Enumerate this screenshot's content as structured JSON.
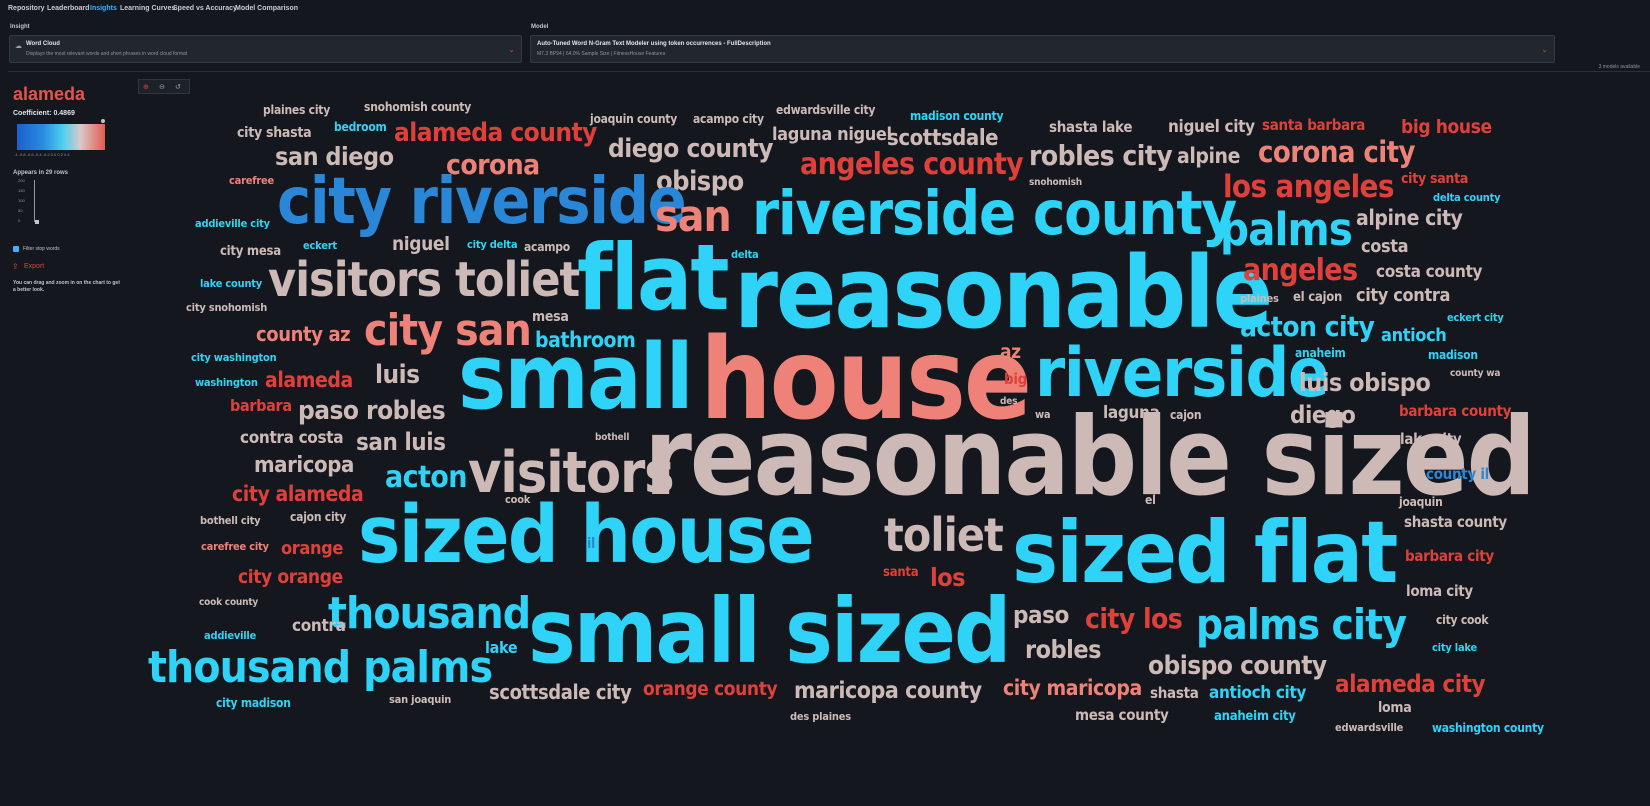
{
  "nav": {
    "tabs": [
      "Repository",
      "Leaderboard",
      "Insights",
      "Learning Curves",
      "Speed vs Accuracy",
      "Model Comparison"
    ],
    "active": "Insights"
  },
  "insight_select": {
    "label": "Insight",
    "title": "Word Cloud",
    "subtitle": "Displays the most relevant words and short phrases in word cloud format"
  },
  "model_select": {
    "label": "Model",
    "title": "Auto-Tuned Word N-Gram Text Modeler using token occurrences - FullDescription",
    "subtitle": "M7.3 BP94 | 64.0% Sample Size | FitnessHouse Features",
    "models_available": "3 models available"
  },
  "sidebar": {
    "selected_word": "alameda",
    "coefficient": "Coefficient: 0.4869",
    "colorbar_ticks": "-1 -0.8 -0.6 -0.4 -0.2 0.0 0.2 0.4",
    "appears": "Appears in 29 rows",
    "hist_ticks": [
      "200",
      "150",
      "100",
      "50",
      "0"
    ],
    "filter_label": "Filter stop words",
    "filter_checked": true,
    "export_label": "Export",
    "help_text": "You can drag and zoom in on the chart to get a better look.",
    "colors": {
      "negative": "#1b5fcf",
      "neutral": "#d9c9c9",
      "positive": "#e35a50"
    }
  },
  "zoom_controls": [
    "zoom-in-icon",
    "zoom-out-icon",
    "reset-icon"
  ],
  "cloud_words": [
    {
      "text": "plaines city",
      "color": "pink"
    },
    {
      "text": "snohomish county",
      "color": "pink"
    },
    {
      "text": "joaquin county",
      "color": "pink"
    },
    {
      "text": "acampo city",
      "color": "pink"
    },
    {
      "text": "edwardsville city",
      "color": "pink"
    },
    {
      "text": "madison county",
      "color": "blue"
    },
    {
      "text": "city shasta",
      "color": "pink"
    },
    {
      "text": "bedroom",
      "color": "blue"
    },
    {
      "text": "alameda county",
      "color": "red"
    },
    {
      "text": "laguna niguel",
      "color": "pink"
    },
    {
      "text": "scottsdale",
      "color": "pink"
    },
    {
      "text": "shasta lake",
      "color": "pink"
    },
    {
      "text": "niguel city",
      "color": "pink"
    },
    {
      "text": "santa barbara",
      "color": "red"
    },
    {
      "text": "big house",
      "color": "red"
    },
    {
      "text": "san diego",
      "color": "pink"
    },
    {
      "text": "corona",
      "color": "salmon"
    },
    {
      "text": "diego county",
      "color": "pink"
    },
    {
      "text": "angeles county",
      "color": "red"
    },
    {
      "text": "robles city",
      "color": "pink"
    },
    {
      "text": "alpine",
      "color": "pink"
    },
    {
      "text": "corona city",
      "color": "salmon"
    },
    {
      "text": "carefree",
      "color": "salmon"
    },
    {
      "text": "obispo",
      "color": "pink"
    },
    {
      "text": "snohomish",
      "color": "pink"
    },
    {
      "text": "los angeles",
      "color": "red"
    },
    {
      "text": "city santa",
      "color": "red"
    },
    {
      "text": "delta county",
      "color": "blue"
    },
    {
      "text": "city riverside",
      "color": "dblue"
    },
    {
      "text": "san",
      "color": "salmon"
    },
    {
      "text": "riverside county",
      "color": "blue"
    },
    {
      "text": "palms",
      "color": "blue"
    },
    {
      "text": "alpine city",
      "color": "pink"
    },
    {
      "text": "addieville city",
      "color": "blue"
    },
    {
      "text": "city mesa",
      "color": "pink"
    },
    {
      "text": "eckert",
      "color": "blue"
    },
    {
      "text": "niguel",
      "color": "pink"
    },
    {
      "text": "city delta",
      "color": "blue"
    },
    {
      "text": "acampo",
      "color": "pink"
    },
    {
      "text": "delta",
      "color": "blue"
    },
    {
      "text": "costa",
      "color": "pink"
    },
    {
      "text": "visitors toliet",
      "color": "pink"
    },
    {
      "text": "flat",
      "color": "blue"
    },
    {
      "text": "reasonable",
      "color": "blue"
    },
    {
      "text": "angeles",
      "color": "red"
    },
    {
      "text": "costa county",
      "color": "pink"
    },
    {
      "text": "lake county",
      "color": "blue"
    },
    {
      "text": "plaines",
      "color": "pink"
    },
    {
      "text": "el cajon",
      "color": "pink"
    },
    {
      "text": "city contra",
      "color": "pink"
    },
    {
      "text": "city snohomish",
      "color": "pink"
    },
    {
      "text": "mesa",
      "color": "pink"
    },
    {
      "text": "eckert city",
      "color": "blue"
    },
    {
      "text": "county az",
      "color": "salmon"
    },
    {
      "text": "city san",
      "color": "salmon"
    },
    {
      "text": "acton city",
      "color": "blue"
    },
    {
      "text": "bathroom",
      "color": "blue"
    },
    {
      "text": "antioch",
      "color": "blue"
    },
    {
      "text": "city washington",
      "color": "blue"
    },
    {
      "text": "az",
      "color": "salmon"
    },
    {
      "text": "anaheim",
      "color": "blue"
    },
    {
      "text": "madison",
      "color": "blue"
    },
    {
      "text": "alameda",
      "color": "red"
    },
    {
      "text": "luis",
      "color": "pink"
    },
    {
      "text": "small",
      "color": "blue"
    },
    {
      "text": "house",
      "color": "salmon"
    },
    {
      "text": "riverside",
      "color": "blue"
    },
    {
      "text": "county wa",
      "color": "pink"
    },
    {
      "text": "washington",
      "color": "blue"
    },
    {
      "text": "big",
      "color": "red"
    },
    {
      "text": "luis obispo",
      "color": "pink"
    },
    {
      "text": "barbara",
      "color": "red"
    },
    {
      "text": "paso robles",
      "color": "pink"
    },
    {
      "text": "des",
      "color": "pink"
    },
    {
      "text": "wa",
      "color": "pink"
    },
    {
      "text": "laguna",
      "color": "pink"
    },
    {
      "text": "cajon",
      "color": "pink"
    },
    {
      "text": "diego",
      "color": "pink"
    },
    {
      "text": "barbara county",
      "color": "red"
    },
    {
      "text": "contra costa",
      "color": "pink"
    },
    {
      "text": "san luis",
      "color": "pink"
    },
    {
      "text": "bothell",
      "color": "pink"
    },
    {
      "text": "lake city",
      "color": "pink"
    },
    {
      "text": "maricopa",
      "color": "pink"
    },
    {
      "text": "visitors",
      "color": "pink"
    },
    {
      "text": "reasonable sized",
      "color": "pink"
    },
    {
      "text": "acton",
      "color": "blue"
    },
    {
      "text": "county il",
      "color": "dblue"
    },
    {
      "text": "city alameda",
      "color": "red"
    },
    {
      "text": "cook",
      "color": "pink"
    },
    {
      "text": "el",
      "color": "pink"
    },
    {
      "text": "joaquin",
      "color": "pink"
    },
    {
      "text": "bothell city",
      "color": "pink"
    },
    {
      "text": "cajon city",
      "color": "pink"
    },
    {
      "text": "sized house",
      "color": "blue"
    },
    {
      "text": "toliet",
      "color": "pink"
    },
    {
      "text": "shasta county",
      "color": "pink"
    },
    {
      "text": "carefree city",
      "color": "salmon"
    },
    {
      "text": "orange",
      "color": "red"
    },
    {
      "text": "il",
      "color": "dblue"
    },
    {
      "text": "sized flat",
      "color": "blue"
    },
    {
      "text": "barbara city",
      "color": "red"
    },
    {
      "text": "city orange",
      "color": "red"
    },
    {
      "text": "santa",
      "color": "red"
    },
    {
      "text": "los",
      "color": "red"
    },
    {
      "text": "loma city",
      "color": "pink"
    },
    {
      "text": "cook county",
      "color": "pink"
    },
    {
      "text": "thousand",
      "color": "blue"
    },
    {
      "text": "paso",
      "color": "pink"
    },
    {
      "text": "city los",
      "color": "red"
    },
    {
      "text": "city cook",
      "color": "pink"
    },
    {
      "text": "addieville",
      "color": "blue"
    },
    {
      "text": "contra",
      "color": "pink"
    },
    {
      "text": "small sized",
      "color": "blue"
    },
    {
      "text": "palms city",
      "color": "blue"
    },
    {
      "text": "lake",
      "color": "blue"
    },
    {
      "text": "robles",
      "color": "pink"
    },
    {
      "text": "city lake",
      "color": "blue"
    },
    {
      "text": "thousand palms",
      "color": "blue"
    },
    {
      "text": "obispo county",
      "color": "pink"
    },
    {
      "text": "alameda city",
      "color": "red"
    },
    {
      "text": "scottsdale city",
      "color": "pink"
    },
    {
      "text": "orange county",
      "color": "red"
    },
    {
      "text": "maricopa county",
      "color": "pink"
    },
    {
      "text": "city maricopa",
      "color": "salmon"
    },
    {
      "text": "shasta",
      "color": "pink"
    },
    {
      "text": "antioch city",
      "color": "blue"
    },
    {
      "text": "city madison",
      "color": "blue"
    },
    {
      "text": "san joaquin",
      "color": "pink"
    },
    {
      "text": "loma",
      "color": "pink"
    },
    {
      "text": "des plaines",
      "color": "pink"
    },
    {
      "text": "mesa county",
      "color": "pink"
    },
    {
      "text": "anaheim city",
      "color": "blue"
    },
    {
      "text": "edwardsville",
      "color": "pink"
    },
    {
      "text": "washington county",
      "color": "blue"
    }
  ]
}
